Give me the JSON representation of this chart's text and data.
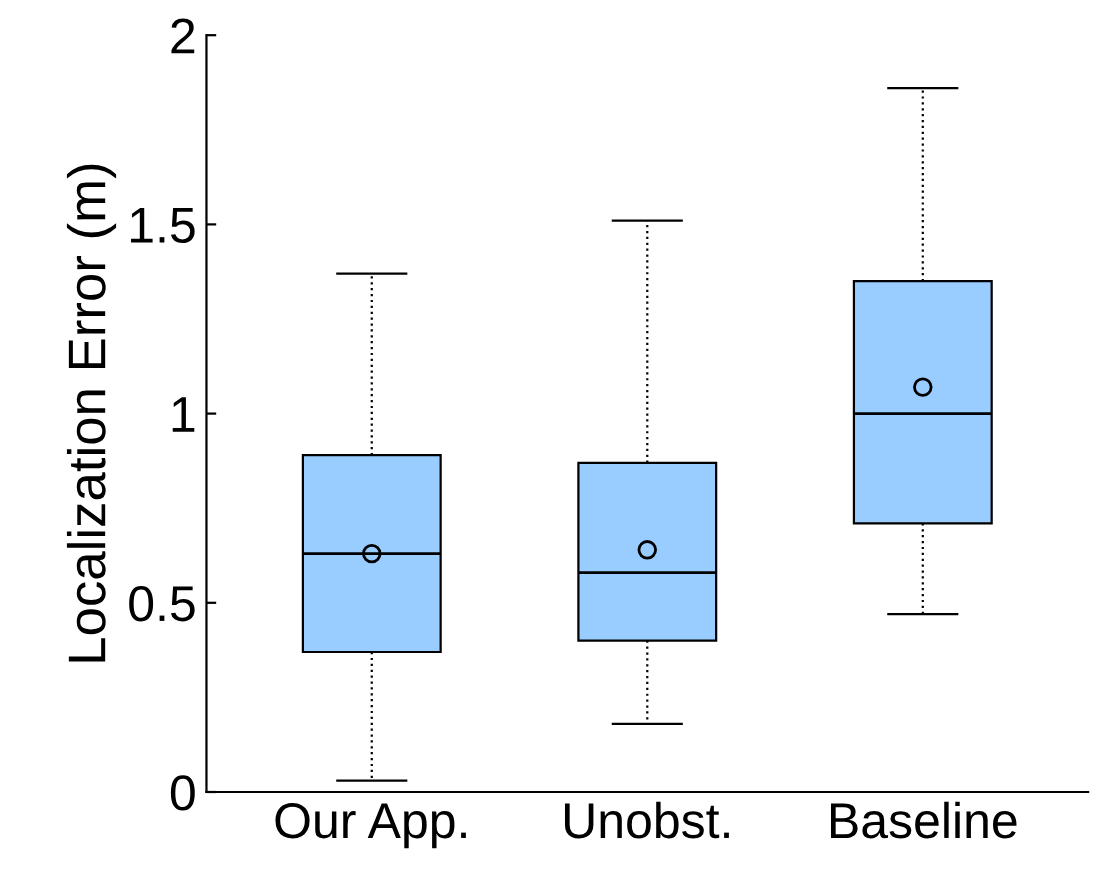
{
  "chart_data": {
    "type": "box",
    "ylabel": "Localization Error (m)",
    "categories": [
      "Our App.",
      "Unobst.",
      "Baseline"
    ],
    "color": "#99ccff",
    "boxes": [
      {
        "low": 0.03,
        "q1": 0.37,
        "median": 0.63,
        "q3": 0.89,
        "high": 1.37,
        "mean": 0.63
      },
      {
        "low": 0.18,
        "q1": 0.4,
        "median": 0.58,
        "q3": 0.87,
        "high": 1.51,
        "mean": 0.64
      },
      {
        "low": 0.47,
        "q1": 0.71,
        "median": 1.0,
        "q3": 1.35,
        "high": 1.86,
        "mean": 1.07
      }
    ],
    "ylim": [
      0,
      2
    ],
    "yticks": [
      0,
      0.5,
      1,
      1.5,
      2
    ],
    "grid": false
  }
}
